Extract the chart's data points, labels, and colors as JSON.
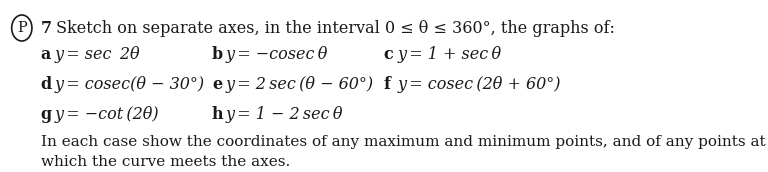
{
  "background_color": "#ffffff",
  "circle_label": "P",
  "question_number": "7",
  "intro_text": "Sketch on separate axes, in the interval 0 ≤ θ ≤ 360°, the graphs of:",
  "items": [
    {
      "label": "a",
      "text": "y",
      "eq": "= sec  2θ"
    },
    {
      "label": "b",
      "text": "y",
      "eq": "= −cosec θ"
    },
    {
      "label": "c",
      "text": "y",
      "eq": "= 1 + sec θ"
    },
    {
      "label": "d",
      "text": "y",
      "eq": "= cosec(θ − 30°)"
    },
    {
      "label": "e",
      "text": "y",
      "eq": "= 2 sec (θ − 60°)"
    },
    {
      "label": "f",
      "text": "y",
      "eq": "= cosec (2θ + 60°)"
    },
    {
      "label": "g",
      "text": "y",
      "eq": "= −cot (2θ)"
    },
    {
      "label": "h",
      "text": "y",
      "eq": "= 1 − 2 sec θ"
    }
  ],
  "footer_text": "In each case show the coordinates of any maximum and minimum points, and of any points at\nwhich the curve meets the axes.",
  "font_size_main": 11.5,
  "font_size_items": 11.5,
  "text_color": "#1a1a1a"
}
